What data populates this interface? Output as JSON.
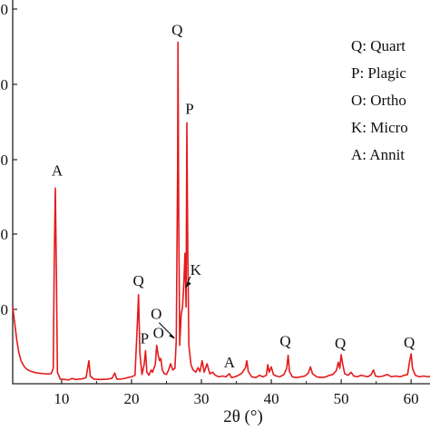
{
  "chart_data": {
    "type": "line",
    "title": "",
    "xlabel": "2θ (°)",
    "ylabel": "",
    "xlim": [
      3,
      64
    ],
    "ylim": [
      0,
      5000
    ],
    "x_ticks": [
      "10",
      "20",
      "30",
      "40",
      "50",
      "60"
    ],
    "y_ticks": [
      "0",
      "0",
      "0",
      "0",
      "0"
    ],
    "grid": false,
    "line_color": "#e41a1c",
    "series": [
      {
        "points": [
          [
            3.0,
            1000
          ],
          [
            3.3,
            780
          ],
          [
            3.6,
            560
          ],
          [
            3.9,
            400
          ],
          [
            4.2,
            300
          ],
          [
            4.6,
            230
          ],
          [
            5.0,
            190
          ],
          [
            5.5,
            165
          ],
          [
            6.0,
            150
          ],
          [
            6.5,
            140
          ],
          [
            7.0,
            135
          ],
          [
            7.5,
            130
          ],
          [
            8.0,
            128
          ],
          [
            8.5,
            130
          ],
          [
            8.8,
            200
          ],
          [
            8.95,
            1600
          ],
          [
            9.1,
            2550
          ],
          [
            9.25,
            1400
          ],
          [
            9.4,
            150
          ],
          [
            9.8,
            60
          ],
          [
            10.5,
            55
          ],
          [
            11.0,
            50
          ],
          [
            11.5,
            70
          ],
          [
            12.0,
            55
          ],
          [
            12.5,
            60
          ],
          [
            13.0,
            65
          ],
          [
            13.5,
            80
          ],
          [
            13.9,
            300
          ],
          [
            14.1,
            100
          ],
          [
            14.6,
            60
          ],
          [
            15.5,
            55
          ],
          [
            16.5,
            60
          ],
          [
            17.2,
            70
          ],
          [
            17.6,
            140
          ],
          [
            17.9,
            60
          ],
          [
            18.5,
            60
          ],
          [
            19.0,
            70
          ],
          [
            19.5,
            80
          ],
          [
            20.0,
            90
          ],
          [
            20.5,
            110
          ],
          [
            20.8,
            700
          ],
          [
            21.0,
            1160
          ],
          [
            21.2,
            400
          ],
          [
            21.5,
            120
          ],
          [
            21.8,
            250
          ],
          [
            22.0,
            430
          ],
          [
            22.2,
            150
          ],
          [
            22.5,
            110
          ],
          [
            22.8,
            180
          ],
          [
            23.0,
            150
          ],
          [
            23.4,
            250
          ],
          [
            23.6,
            500
          ],
          [
            23.8,
            380
          ],
          [
            24.0,
            300
          ],
          [
            24.2,
            330
          ],
          [
            24.4,
            180
          ],
          [
            24.7,
            130
          ],
          [
            25.0,
            120
          ],
          [
            25.3,
            180
          ],
          [
            25.6,
            260
          ],
          [
            25.9,
            180
          ],
          [
            26.2,
            200
          ],
          [
            26.4,
            560
          ],
          [
            26.6,
            2800
          ],
          [
            26.65,
            4450
          ],
          [
            26.75,
            2200
          ],
          [
            26.9,
            500
          ],
          [
            27.1,
            900
          ],
          [
            27.3,
            1000
          ],
          [
            27.5,
            1350
          ],
          [
            27.65,
            1700
          ],
          [
            27.8,
            1000
          ],
          [
            27.92,
            3400
          ],
          [
            28.05,
            1700
          ],
          [
            28.2,
            500
          ],
          [
            28.5,
            250
          ],
          [
            28.8,
            180
          ],
          [
            29.2,
            150
          ],
          [
            29.5,
            210
          ],
          [
            29.8,
            160
          ],
          [
            30.1,
            300
          ],
          [
            30.4,
            150
          ],
          [
            30.8,
            260
          ],
          [
            31.2,
            130
          ],
          [
            31.6,
            150
          ],
          [
            32.0,
            110
          ],
          [
            32.5,
            90
          ],
          [
            33.0,
            100
          ],
          [
            33.5,
            90
          ],
          [
            34.0,
            130
          ],
          [
            34.3,
            80
          ],
          [
            34.8,
            90
          ],
          [
            35.3,
            110
          ],
          [
            35.8,
            140
          ],
          [
            36.3,
            210
          ],
          [
            36.5,
            300
          ],
          [
            36.7,
            160
          ],
          [
            37.2,
            90
          ],
          [
            37.8,
            80
          ],
          [
            38.3,
            110
          ],
          [
            38.8,
            90
          ],
          [
            39.3,
            110
          ],
          [
            39.5,
            250
          ],
          [
            39.7,
            150
          ],
          [
            40.0,
            220
          ],
          [
            40.3,
            120
          ],
          [
            40.7,
            100
          ],
          [
            41.2,
            90
          ],
          [
            41.8,
            120
          ],
          [
            42.2,
            200
          ],
          [
            42.4,
            370
          ],
          [
            42.6,
            160
          ],
          [
            43.0,
            90
          ],
          [
            43.6,
            80
          ],
          [
            44.2,
            90
          ],
          [
            44.8,
            100
          ],
          [
            45.3,
            140
          ],
          [
            45.6,
            220
          ],
          [
            45.9,
            130
          ],
          [
            46.5,
            90
          ],
          [
            47.2,
            80
          ],
          [
            47.8,
            90
          ],
          [
            48.3,
            110
          ],
          [
            48.8,
            120
          ],
          [
            49.3,
            170
          ],
          [
            49.6,
            280
          ],
          [
            49.8,
            200
          ],
          [
            50.0,
            380
          ],
          [
            50.2,
            260
          ],
          [
            50.5,
            130
          ],
          [
            51.0,
            110
          ],
          [
            51.4,
            150
          ],
          [
            51.8,
            100
          ],
          [
            52.3,
            90
          ],
          [
            52.8,
            110
          ],
          [
            53.3,
            100
          ],
          [
            53.8,
            90
          ],
          [
            54.3,
            120
          ],
          [
            54.6,
            180
          ],
          [
            54.9,
            100
          ],
          [
            55.4,
            90
          ],
          [
            56.0,
            100
          ],
          [
            56.6,
            120
          ],
          [
            57.2,
            90
          ],
          [
            57.8,
            100
          ],
          [
            58.4,
            90
          ],
          [
            59.0,
            110
          ],
          [
            59.5,
            120
          ],
          [
            59.8,
            300
          ],
          [
            60.0,
            390
          ],
          [
            60.2,
            200
          ],
          [
            60.6,
            110
          ],
          [
            61.2,
            90
          ],
          [
            61.8,
            100
          ],
          [
            62.4,
            90
          ],
          [
            63.0,
            100
          ],
          [
            63.6,
            90
          ],
          [
            64.0,
            95
          ]
        ]
      }
    ],
    "annotations": [
      {
        "text": "A",
        "x": 9.1,
        "y": 2550
      },
      {
        "text": "Q",
        "x": 21.0,
        "y": 1160
      },
      {
        "text": "P",
        "x": 22.0,
        "y": 430
      },
      {
        "text": "O",
        "x": 23.6,
        "y": 500
      },
      {
        "text": "Q",
        "x": 26.65,
        "y": 4450
      },
      {
        "text": "P",
        "x": 27.92,
        "y": 3400
      },
      {
        "text": "O",
        "x": 26.4,
        "y": 560
      },
      {
        "text": "K",
        "x": 27.5,
        "y": 1350
      },
      {
        "text": "A",
        "x": 34.0,
        "y": 130
      },
      {
        "text": "Q",
        "x": 42.4,
        "y": 370
      },
      {
        "text": "Q",
        "x": 50.0,
        "y": 380
      },
      {
        "text": "Q",
        "x": 60.0,
        "y": 390
      }
    ],
    "legend": {
      "placement": "top-right",
      "entries": [
        "Q:   Quart",
        "P:   Plagic",
        "O:   Ortho",
        "K:   Micro",
        "A:   Annit"
      ]
    }
  }
}
